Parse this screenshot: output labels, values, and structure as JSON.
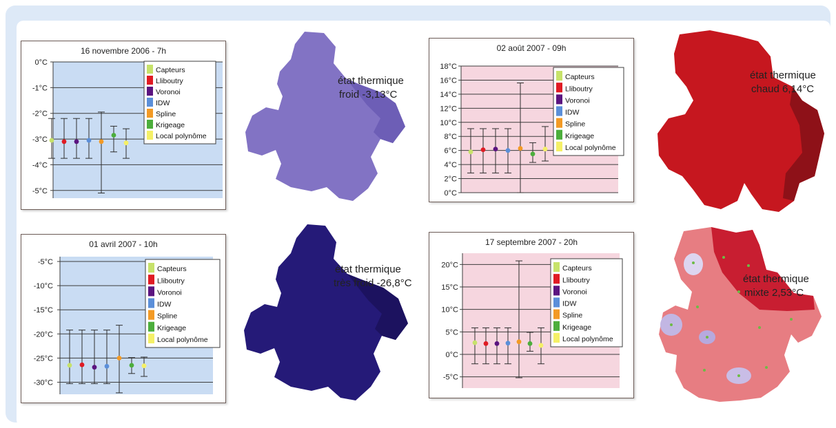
{
  "legend": [
    {
      "label": "Capteurs",
      "color": "#c7e26a"
    },
    {
      "label": "Lliboutry",
      "color": "#e01b24"
    },
    {
      "label": "Voronoi",
      "color": "#5b1480"
    },
    {
      "label": "IDW",
      "color": "#5b8fd9"
    },
    {
      "label": "Spline",
      "color": "#f39a25"
    },
    {
      "label": "Krigeage",
      "color": "#4cae3c"
    },
    {
      "label": "Local polynôme",
      "color": "#f5f067"
    }
  ],
  "chart_data": [
    {
      "type": "scatter",
      "title": "16 novembre 2006 - 7h",
      "background": "#c9dcf3",
      "ylim": [
        -5.3,
        0
      ],
      "yticks": [
        0,
        -1,
        -2,
        -3,
        -4,
        -5
      ],
      "ytick_labels": [
        "0°C",
        "-1°C",
        "-2°C",
        "-3°C",
        "-4°C",
        "-5°C"
      ],
      "points": [
        {
          "series": "Capteurs",
          "value": -3.05,
          "low": -3.75,
          "high": -2.2
        },
        {
          "series": "Lliboutry",
          "value": -3.1,
          "low": -3.75,
          "high": -2.2
        },
        {
          "series": "Voronoi",
          "value": -3.1,
          "low": -3.75,
          "high": -2.2
        },
        {
          "series": "IDW",
          "value": -3.05,
          "low": -3.75,
          "high": -2.2
        },
        {
          "series": "Spline",
          "value": -3.1,
          "low": -5.1,
          "high": -1.95
        },
        {
          "series": "Krigeage",
          "value": -2.85,
          "low": -3.5,
          "high": -2.5
        },
        {
          "series": "Local polynôme",
          "value": -3.15,
          "low": -3.75,
          "high": -2.6
        }
      ]
    },
    {
      "type": "scatter",
      "title": "01 avril 2007 - 10h",
      "background": "#c9dcf3",
      "ylim": [
        -32.5,
        -4
      ],
      "yticks": [
        -5,
        -10,
        -15,
        -20,
        -25,
        -30
      ],
      "ytick_labels": [
        "-5°C",
        "-10°C",
        "-15°C",
        "-20°C",
        "-25°C",
        "-30°C"
      ],
      "points": [
        {
          "series": "Capteurs",
          "value": -26.5,
          "low": -30.3,
          "high": -19.2
        },
        {
          "series": "Lliboutry",
          "value": -26.4,
          "low": -30.3,
          "high": -19.2
        },
        {
          "series": "Voronoi",
          "value": -26.9,
          "low": -30.3,
          "high": -19.2
        },
        {
          "series": "IDW",
          "value": -26.7,
          "low": -30.3,
          "high": -19.2
        },
        {
          "series": "Spline",
          "value": -25.0,
          "low": -32.2,
          "high": -18.2
        },
        {
          "series": "Krigeage",
          "value": -26.5,
          "low": -28.2,
          "high": -24.9
        },
        {
          "series": "Local polynôme",
          "value": -26.6,
          "low": -28.8,
          "high": -24.8
        }
      ]
    },
    {
      "type": "scatter",
      "title": "02 août 2007 - 09h",
      "background": "#f6d6df",
      "ylim": [
        0,
        18
      ],
      "yticks": [
        0,
        2,
        4,
        6,
        8,
        10,
        12,
        14,
        16,
        18
      ],
      "ytick_labels": [
        "0°C",
        "2°C",
        "4°C",
        "6°C",
        "8°C",
        "10°C",
        "12°C",
        "14°C",
        "16°C",
        "18°C"
      ],
      "points": [
        {
          "series": "Capteurs",
          "value": 5.8,
          "low": 2.8,
          "high": 9.1
        },
        {
          "series": "Lliboutry",
          "value": 6.1,
          "low": 2.8,
          "high": 9.1
        },
        {
          "series": "Voronoi",
          "value": 6.2,
          "low": 2.8,
          "high": 9.1
        },
        {
          "series": "IDW",
          "value": 6.0,
          "low": 2.8,
          "high": 9.1
        },
        {
          "series": "Spline",
          "value": 6.3,
          "low": 0,
          "high": 15.6
        },
        {
          "series": "Krigeage",
          "value": 5.5,
          "low": 4.3,
          "high": 7.1
        },
        {
          "series": "Local polynôme",
          "value": 6.2,
          "low": 4.5,
          "high": 9.4
        }
      ]
    },
    {
      "type": "scatter",
      "title": "17 septembre 2007 - 20h",
      "background": "#f6d6df",
      "ylim": [
        -7.5,
        22.5
      ],
      "yticks": [
        20,
        15,
        10,
        5,
        0,
        -5
      ],
      "ytick_labels": [
        "20°C",
        "15°C",
        "10°C",
        "5°C",
        "0°C",
        "-5°C"
      ],
      "points": [
        {
          "series": "Capteurs",
          "value": 2.6,
          "low": -2.1,
          "high": 5.9
        },
        {
          "series": "Lliboutry",
          "value": 2.4,
          "low": -2.1,
          "high": 5.9
        },
        {
          "series": "Voronoi",
          "value": 2.4,
          "low": -2.1,
          "high": 5.9
        },
        {
          "series": "IDW",
          "value": 2.5,
          "low": -2.1,
          "high": 5.9
        },
        {
          "series": "Spline",
          "value": 2.8,
          "low": -5.2,
          "high": 20.8
        },
        {
          "series": "Krigeage",
          "value": 2.4,
          "low": 0.7,
          "high": 4.9
        },
        {
          "series": "Local polynôme",
          "value": 2.0,
          "low": -2.1,
          "high": 5.9
        }
      ]
    }
  ],
  "maps": [
    {
      "line1": "état thermique",
      "line2": "froid  -3,13°C",
      "fill": "#8273c4",
      "shade": "#6d5eb6"
    },
    {
      "line1": "état thermique",
      "line2": "très froid  -26,8°C",
      "fill": "#251a78",
      "shade": "#1c125f"
    },
    {
      "line1": "état thermique",
      "line2": "chaud  6,14°C",
      "fill": "#c6171f",
      "shade": "#8e1118"
    },
    {
      "line1": "état thermique",
      "line2": "mixte  2,53°C",
      "fill": "#e77d82",
      "shade": "#c81e31"
    }
  ]
}
